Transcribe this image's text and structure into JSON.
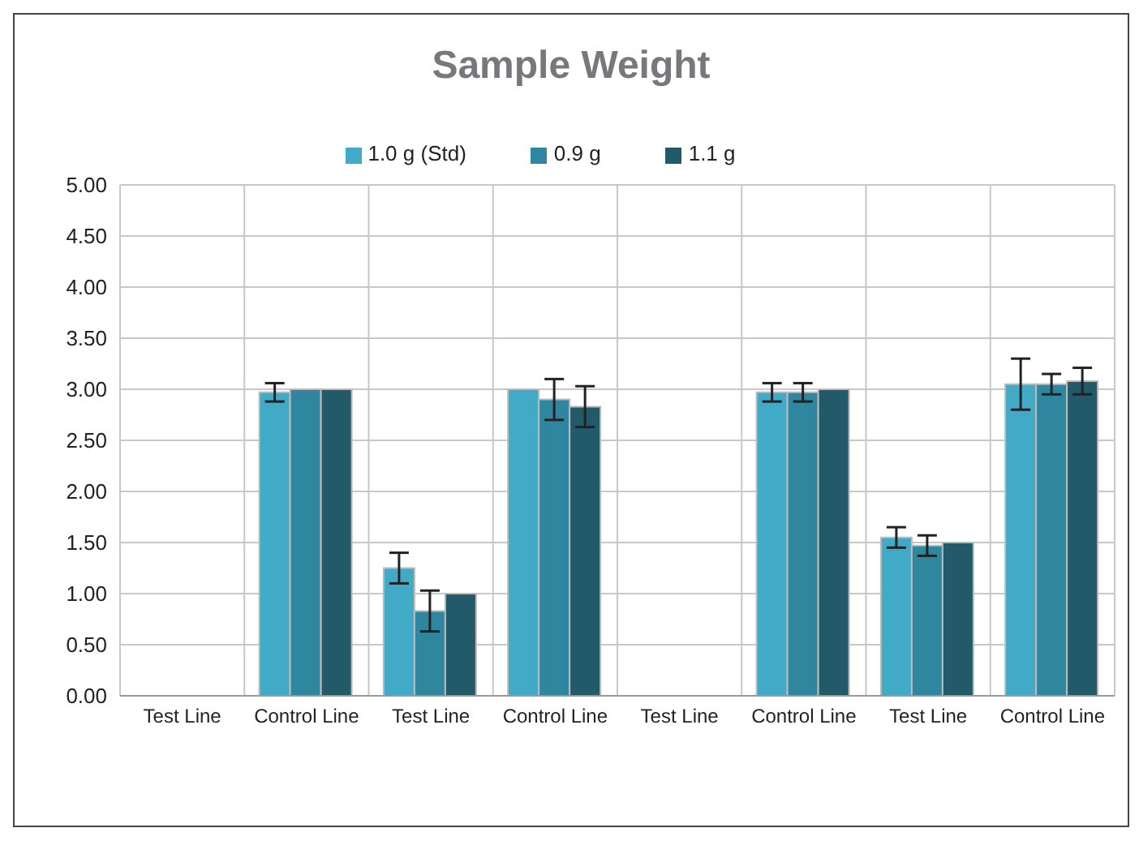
{
  "chart_data": {
    "type": "bar",
    "title": "Sample Weight",
    "categories": [
      "Test Line",
      "Control Line",
      "Test Line",
      "Control Line",
      "Test Line",
      "Control Line",
      "Test Line",
      "Control Line"
    ],
    "series": [
      {
        "name": "1.0 g (Std)",
        "color": "#41abc7",
        "values": [
          0,
          2.97,
          1.25,
          3.0,
          0,
          2.97,
          1.55,
          3.05
        ],
        "errors": [
          0,
          0.09,
          0.15,
          0,
          0,
          0.09,
          0.1,
          0.25
        ]
      },
      {
        "name": "0.9 g",
        "color": "#2e879e",
        "values": [
          0,
          3.0,
          0.83,
          2.9,
          0,
          2.97,
          1.47,
          3.05
        ],
        "errors": [
          0,
          0,
          0.2,
          0.2,
          0,
          0.09,
          0.1,
          0.1
        ]
      },
      {
        "name": "1.1 g",
        "color": "#225a6a",
        "values": [
          0,
          3.0,
          1.0,
          2.83,
          0,
          3.0,
          1.5,
          3.08
        ],
        "errors": [
          0,
          0,
          0,
          0.2,
          0,
          0,
          0,
          0.13
        ]
      }
    ],
    "ylim": [
      0,
      5
    ],
    "yticks": [
      {
        "value": 0,
        "label": "0.00"
      },
      {
        "value": 0.5,
        "label": "0.50"
      },
      {
        "value": 1,
        "label": "1.00"
      },
      {
        "value": 1.5,
        "label": "1.50"
      },
      {
        "value": 2,
        "label": "2.00"
      },
      {
        "value": 2.5,
        "label": "2.50"
      },
      {
        "value": 3,
        "label": "3.00"
      },
      {
        "value": 3.5,
        "label": "3.50"
      },
      {
        "value": 4,
        "label": "4.00"
      },
      {
        "value": 4.5,
        "label": "4.50"
      },
      {
        "value": 5,
        "label": "5.00"
      }
    ],
    "grid": true,
    "legend": "top"
  }
}
